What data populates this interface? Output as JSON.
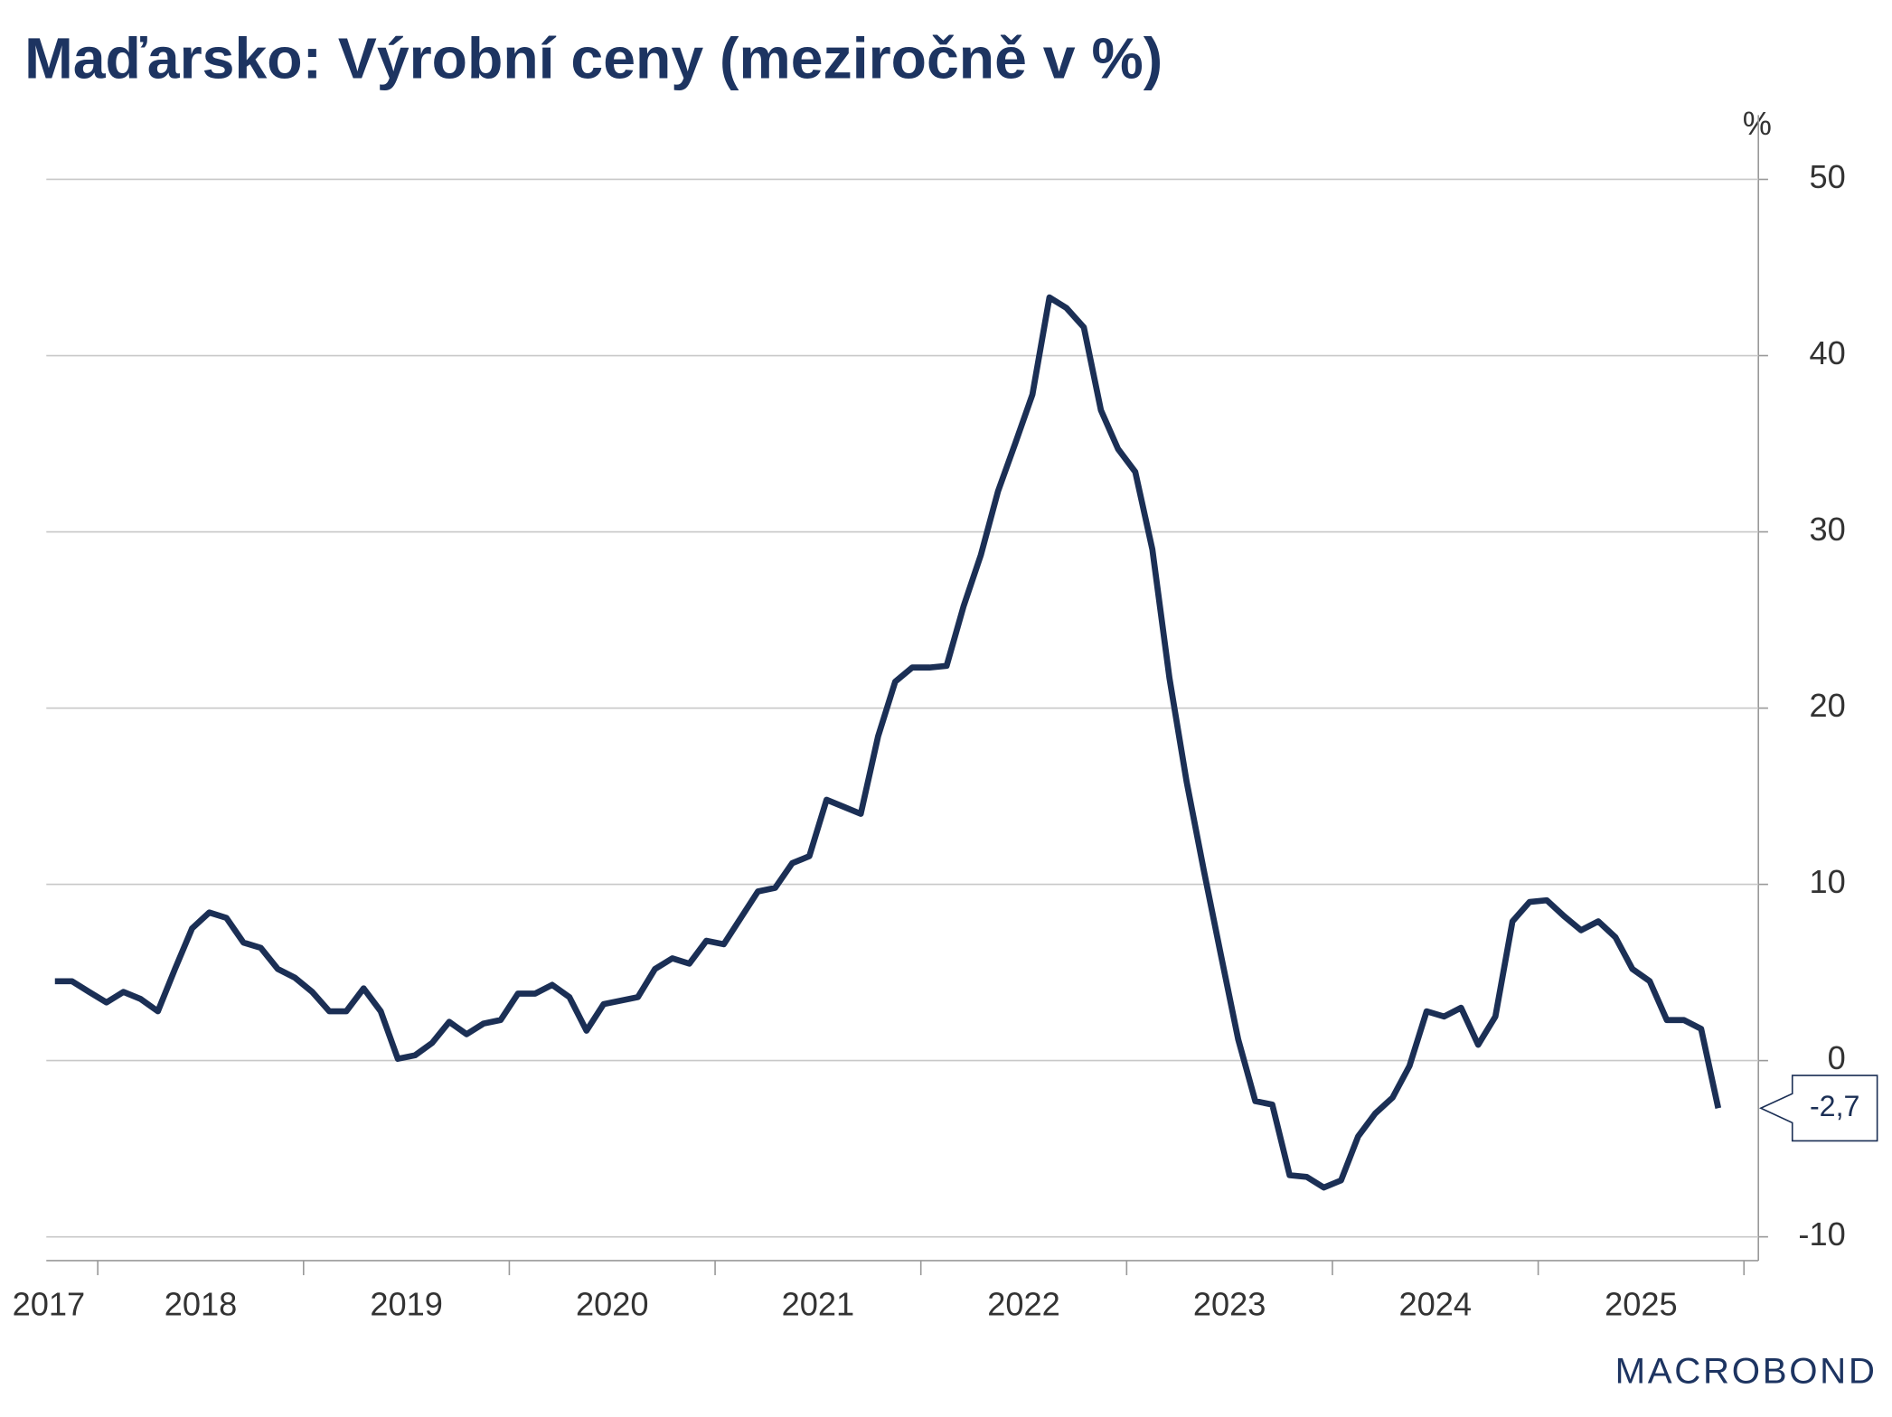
{
  "chart_data": {
    "type": "line",
    "title": "Maďarsko: Výrobní ceny (meziročně v %)",
    "y_unit": "%",
    "source_logo": "MACROBOND",
    "annotation": "-2,7",
    "grid": true,
    "xlim": [
      2017.75,
      2026.07
    ],
    "ylim": [
      -11.35,
      53.3
    ],
    "yticks": [
      -10,
      0,
      10,
      20,
      30,
      40,
      50
    ],
    "xticks": [
      {
        "value": 2017.5,
        "label": "2017"
      },
      {
        "value": 2018.5,
        "label": "2018"
      },
      {
        "value": 2019.5,
        "label": "2019"
      },
      {
        "value": 2020.5,
        "label": "2020"
      },
      {
        "value": 2021.5,
        "label": "2021"
      },
      {
        "value": 2022.5,
        "label": "2022"
      },
      {
        "value": 2023.5,
        "label": "2023"
      },
      {
        "value": 2024.5,
        "label": "2024"
      },
      {
        "value": 2025.5,
        "label": "2025"
      }
    ],
    "x": [
      2017.792,
      2017.875,
      2017.958,
      2018.042,
      2018.125,
      2018.208,
      2018.292,
      2018.375,
      2018.458,
      2018.542,
      2018.625,
      2018.708,
      2018.792,
      2018.875,
      2018.958,
      2019.042,
      2019.125,
      2019.208,
      2019.292,
      2019.375,
      2019.458,
      2019.542,
      2019.625,
      2019.708,
      2019.792,
      2019.875,
      2019.958,
      2020.042,
      2020.125,
      2020.208,
      2020.292,
      2020.375,
      2020.458,
      2020.542,
      2020.625,
      2020.708,
      2020.792,
      2020.875,
      2020.958,
      2021.042,
      2021.125,
      2021.208,
      2021.292,
      2021.375,
      2021.458,
      2021.542,
      2021.625,
      2021.708,
      2021.792,
      2021.875,
      2021.958,
      2022.042,
      2022.125,
      2022.208,
      2022.292,
      2022.375,
      2022.458,
      2022.542,
      2022.625,
      2022.708,
      2022.792,
      2022.875,
      2022.958,
      2023.042,
      2023.125,
      2023.208,
      2023.292,
      2023.375,
      2023.458,
      2023.542,
      2023.625,
      2023.708,
      2023.792,
      2023.875,
      2023.958,
      2024.042,
      2024.125,
      2024.208,
      2024.292,
      2024.375,
      2024.458,
      2024.542,
      2024.625,
      2024.708,
      2024.792,
      2024.875,
      2024.958,
      2025.042,
      2025.125,
      2025.208,
      2025.292,
      2025.375,
      2025.458,
      2025.542,
      2025.625,
      2025.708,
      2025.792,
      2025.875
    ],
    "series": [
      {
        "color": "#1b2f55",
        "values": [
          4.5,
          4.5,
          3.9,
          3.3,
          3.9,
          3.5,
          2.8,
          5.2,
          7.5,
          8.4,
          8.1,
          6.7,
          6.4,
          5.2,
          4.7,
          3.9,
          2.8,
          2.8,
          4.1,
          2.8,
          0.1,
          0.3,
          1.0,
          2.2,
          1.5,
          2.1,
          2.3,
          3.8,
          3.8,
          4.3,
          3.6,
          1.7,
          3.2,
          3.4,
          3.6,
          5.2,
          5.8,
          5.5,
          6.8,
          6.6,
          8.1,
          9.6,
          9.8,
          11.2,
          11.6,
          14.8,
          14.4,
          14.0,
          18.4,
          21.5,
          22.3,
          22.3,
          22.4,
          25.8,
          28.7,
          32.3,
          35.0,
          37.8,
          43.3,
          42.7,
          41.6,
          36.9,
          34.7,
          33.4,
          29.0,
          21.7,
          15.8,
          10.8,
          6.0,
          1.2,
          -2.3,
          -2.5,
          -6.5,
          -6.6,
          -7.2,
          -6.8,
          -4.3,
          -3.0,
          -2.1,
          -0.3,
          2.8,
          2.5,
          3.0,
          0.9,
          2.5,
          7.9,
          9.0,
          9.1,
          8.2,
          7.4,
          7.9,
          7.0,
          5.2,
          4.5,
          2.3,
          2.3,
          1.8,
          -2.7
        ]
      }
    ]
  }
}
